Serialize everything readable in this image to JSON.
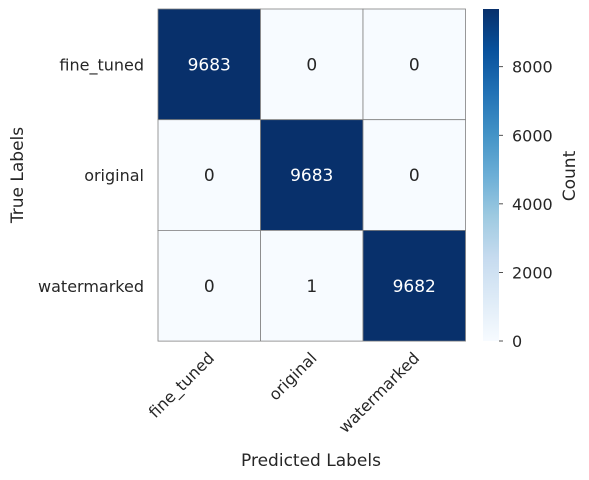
{
  "chart_data": {
    "type": "heatmap",
    "title": "",
    "x_categories": [
      "fine_tuned",
      "original",
      "watermarked"
    ],
    "y_categories": [
      "fine_tuned",
      "original",
      "watermarked"
    ],
    "values": [
      [
        9683,
        0,
        0
      ],
      [
        0,
        9683,
        0
      ],
      [
        0,
        1,
        9682
      ]
    ],
    "xlabel": "Predicted Labels",
    "ylabel": "True Labels",
    "colorbar": {
      "label": "Count",
      "min": 0,
      "max": 9683,
      "ticks": [
        0,
        2000,
        4000,
        6000,
        8000
      ],
      "colormap": "Blues",
      "low_color": "#f7fbff",
      "high_color": "#08306b"
    },
    "cell_annotations": true,
    "grid_line_color": "#808080"
  }
}
